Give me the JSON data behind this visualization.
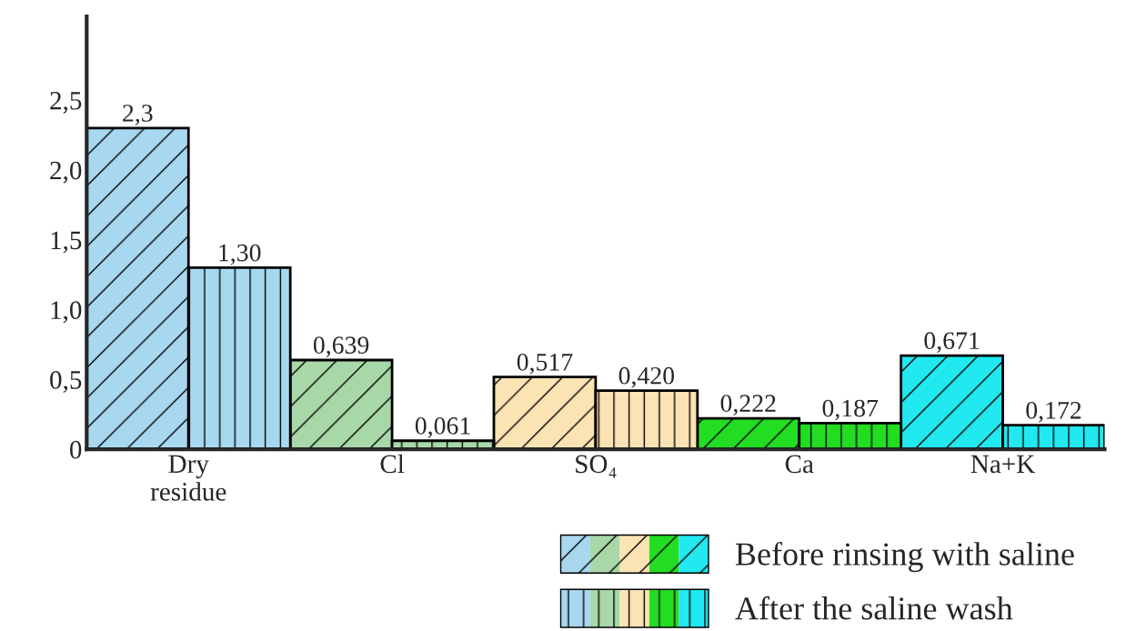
{
  "chart_data": {
    "type": "bar",
    "categories": [
      "Dry\nresidue",
      "Cl",
      "SO₄",
      "Ca",
      "Na+K"
    ],
    "series": [
      {
        "name": "Before rinsing with saline",
        "colors": [
          "#a8d8f0",
          "#a8d8a8",
          "#fbe3b4",
          "#22dd22",
          "#22e8f0"
        ],
        "values": [
          2.3,
          0.639,
          0.517,
          0.222,
          0.671
        ],
        "value_labels": [
          "2,3",
          "0,639",
          "0,517",
          "0,222",
          "0,671"
        ]
      },
      {
        "name": "After the saline wash",
        "colors": [
          "#a8d8f0",
          "#a8d8a8",
          "#fbe3b4",
          "#22dd22",
          "#22e8f0"
        ],
        "values": [
          1.3,
          0.061,
          0.42,
          0.187,
          0.172
        ],
        "value_labels": [
          "1,30",
          "0,061",
          "0,420",
          "0,187",
          "0,172"
        ]
      }
    ],
    "ylim": [
      0,
      3.1
    ],
    "yticks": [
      0,
      {
        "value": 0.5,
        "label": "0,5"
      },
      {
        "value": 1.0,
        "label": "1,0"
      },
      {
        "value": 1.5,
        "label": "1,5"
      },
      {
        "value": 2.0,
        "label": "2,0"
      },
      {
        "value": 2.5,
        "label": "2,5"
      }
    ],
    "grid": false,
    "legend": "bottom right"
  }
}
